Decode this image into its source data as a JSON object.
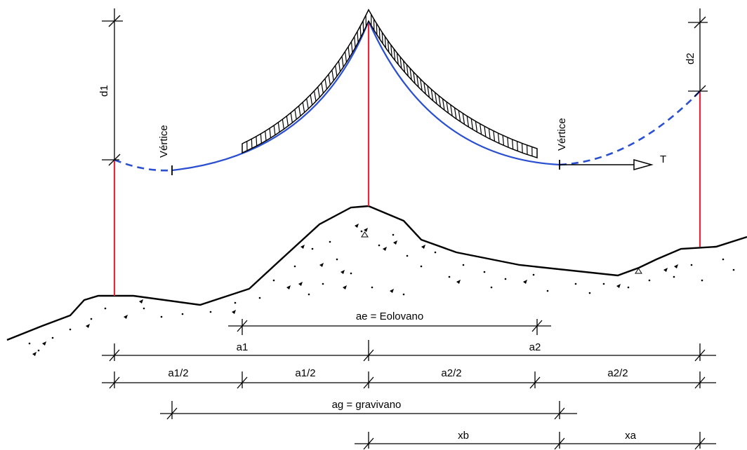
{
  "colors": {
    "conductor": "#2a4fd0",
    "pole": "#e8283a",
    "ground": "#000000",
    "dimension": "#000000"
  },
  "labels": {
    "d1": "d1",
    "d2": "d2",
    "vertex_left": "Vértice",
    "vertex_right": "Vértice",
    "tension": "T",
    "ae": "ae = Eolovano",
    "a1": "a1",
    "a2": "a2",
    "a1_half_left": "a1/2",
    "a1_half_right": "a1/2",
    "a2_half_left": "a2/2",
    "a2_half_right": "a2/2",
    "ag": "ag = gravivano",
    "xb": "xb",
    "xa": "xa"
  }
}
